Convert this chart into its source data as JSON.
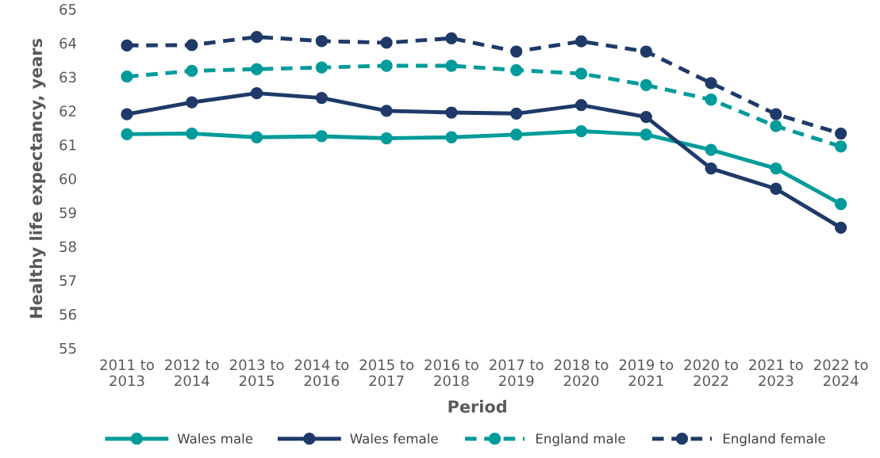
{
  "chart_data": {
    "type": "line",
    "xlabel": "Period",
    "ylabel": "Healthy life expectancy, years",
    "categories": [
      "2011 to\n2013",
      "2012 to\n2014",
      "2013 to\n2015",
      "2014 to\n2016",
      "2015 to\n2017",
      "2016 to\n2018",
      "2017 to\n2019",
      "2018 to\n2020",
      "2019 to\n2021",
      "2020 to\n2022",
      "2021 to\n2023",
      "2022 to\n2024"
    ],
    "series": [
      {
        "name": "Wales male",
        "color": "#009b9a",
        "line_style": "solid",
        "values": [
          61.31,
          61.33,
          61.22,
          61.25,
          61.19,
          61.22,
          61.3,
          61.4,
          61.3,
          60.85,
          60.3,
          59.25
        ]
      },
      {
        "name": "Wales female",
        "color": "#1f3a68",
        "line_style": "solid",
        "values": [
          61.9,
          62.25,
          62.52,
          62.38,
          62.0,
          61.95,
          61.92,
          62.17,
          61.82,
          60.3,
          59.7,
          58.55
        ]
      },
      {
        "name": "England male",
        "color": "#009b9a",
        "line_style": "dashed",
        "values": [
          63.01,
          63.18,
          63.23,
          63.28,
          63.33,
          63.33,
          63.2,
          63.1,
          62.76,
          62.33,
          61.55,
          60.95
        ]
      },
      {
        "name": "England female",
        "color": "#1f3a68",
        "line_style": "dashed",
        "values": [
          63.93,
          63.94,
          64.18,
          64.06,
          64.01,
          64.14,
          63.75,
          64.05,
          63.75,
          62.82,
          61.9,
          61.33
        ]
      }
    ],
    "ylim": [
      55,
      65
    ],
    "yticks": [
      55,
      56,
      57,
      58,
      59,
      60,
      61,
      62,
      63,
      64,
      65
    ],
    "marker": "circle",
    "legend": "bottom",
    "grid": false
  }
}
